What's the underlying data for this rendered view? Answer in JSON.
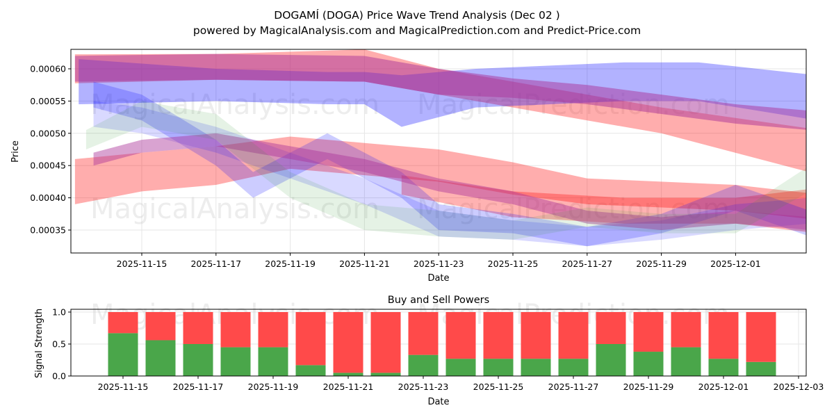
{
  "chart_data": [
    {
      "type": "area",
      "title": "DOGAMÍ (DOGA) Price Wave Trend Analysis (Dec 02 )",
      "subtitle": "powered by MagicalAnalysis.com and MagicalPrediction.com and Predict-Price.com",
      "xlabel": "Date",
      "ylabel": "Price",
      "ylim": [
        0.000315,
        0.00063
      ],
      "grid": true,
      "x_ticks": [
        "2025-11-15",
        "2025-11-17",
        "2025-11-19",
        "2025-11-21",
        "2025-11-23",
        "2025-11-25",
        "2025-11-27",
        "2025-11-29",
        "2025-12-01"
      ],
      "y_ticks": [
        "0.00035",
        "0.00040",
        "0.00045",
        "0.00050",
        "0.00055",
        "0.00060"
      ],
      "y_tick_values": [
        0.00035,
        0.0004,
        0.00045,
        0.0005,
        0.00055,
        0.0006
      ],
      "watermarks": [
        "MagicalAnalysis.com",
        "MagicalPrediction.com"
      ],
      "bands": [
        {
          "name": "red-top",
          "color": "#ff0000",
          "opacity": 0.32,
          "days": [
            -1.8,
            2,
            6,
            8,
            10,
            14,
            18.3
          ],
          "center": [
            0.0006,
            0.000603,
            0.000605,
            0.00058,
            0.00056,
            0.00052,
            0.00047
          ],
          "width": [
            4.5e-05,
            4e-05,
            5e-05,
            4e-05,
            4e-05,
            4e-05,
            7e-05
          ]
        },
        {
          "name": "red-lower",
          "color": "#ff0000",
          "opacity": 0.32,
          "days": [
            -1.8,
            0,
            2,
            4,
            6,
            8,
            10,
            12,
            14,
            16,
            18.3
          ],
          "center": [
            0.000425,
            0.00044,
            0.00045,
            0.00047,
            0.00046,
            0.00045,
            0.00043,
            0.00041,
            0.000405,
            0.0004,
            0.000385
          ],
          "width": [
            7e-05,
            6e-05,
            6e-05,
            5e-05,
            5e-05,
            5e-05,
            5e-05,
            4e-05,
            4e-05,
            4e-05,
            4e-05
          ]
        },
        {
          "name": "red-low-flat",
          "color": "#ff0000",
          "opacity": 0.3,
          "days": [
            7,
            10,
            13,
            16,
            18.2
          ],
          "center": [
            0.00042,
            0.00039,
            0.00038,
            0.00038,
            0.00038
          ],
          "width": [
            3e-05,
            4e-05,
            4e-05,
            4e-05,
            7e-05
          ]
        },
        {
          "name": "blue-top",
          "color": "#0000ff",
          "opacity": 0.3,
          "days": [
            -1.7,
            2,
            5,
            6,
            7,
            9,
            11,
            13,
            15,
            18.2
          ],
          "center": [
            0.00058,
            0.000575,
            0.00057,
            0.00057,
            0.00055,
            0.00057,
            0.000575,
            0.00058,
            0.00058,
            0.000555
          ],
          "width": [
            7e-05,
            5e-05,
            5e-05,
            5e-05,
            8e-05,
            6e-05,
            6e-05,
            6e-05,
            6e-05,
            7e-05
          ]
        },
        {
          "name": "blue-desc-1",
          "color": "#0000ff",
          "opacity": 0.15,
          "days": [
            -1.3,
            0,
            2,
            4,
            6,
            8,
            10,
            12,
            14,
            16,
            18
          ],
          "center": [
            0.00053,
            0.00052,
            0.00049,
            0.00045,
            0.00041,
            0.00036,
            0.00035,
            0.00034,
            0.00035,
            0.00037,
            0.00038
          ],
          "width": [
            4e-05,
            4e-05,
            4e-05,
            4e-05,
            4e-05,
            4e-05,
            3e-05,
            3e-05,
            3e-05,
            4e-05,
            4e-05
          ]
        },
        {
          "name": "blue-desc-2",
          "color": "#0000ff",
          "opacity": 0.2,
          "days": [
            -1.3,
            0,
            2,
            3,
            5,
            7,
            8,
            10,
            12,
            14,
            16,
            18
          ],
          "center": [
            0.00056,
            0.00054,
            0.00047,
            0.00042,
            0.00048,
            0.00042,
            0.00037,
            0.00036,
            0.00034,
            0.00036,
            0.0004,
            0.00036
          ],
          "width": [
            4e-05,
            4e-05,
            4e-05,
            4e-05,
            4e-05,
            4e-05,
            4e-05,
            3e-05,
            3e-05,
            3e-05,
            4e-05,
            4e-05
          ]
        },
        {
          "name": "purple-top",
          "color": "#aa3399",
          "opacity": 0.5,
          "days": [
            -1.8,
            2,
            6,
            8,
            10,
            12,
            14,
            16,
            18
          ],
          "center": [
            0.0006,
            0.000603,
            0.0006,
            0.00058,
            0.00057,
            0.00056,
            0.000545,
            0.00053,
            0.00052
          ],
          "width": [
            4e-05,
            4e-05,
            4e-05,
            4e-05,
            3e-05,
            3e-05,
            3e-05,
            3e-05,
            3e-05
          ]
        },
        {
          "name": "purple-lower",
          "color": "#aa3399",
          "opacity": 0.45,
          "days": [
            -1.3,
            0,
            2,
            4,
            6,
            8,
            10,
            12,
            14,
            16,
            18
          ],
          "center": [
            0.00046,
            0.00048,
            0.00049,
            0.00047,
            0.00045,
            0.00042,
            0.0004,
            0.00037,
            0.00036,
            0.00037,
            0.00036
          ],
          "width": [
            2e-05,
            2e-05,
            2e-05,
            2e-05,
            2e-05,
            2e-05,
            2e-05,
            2e-05,
            2e-05,
            2e-05,
            2e-05
          ]
        },
        {
          "name": "green",
          "color": "#339933",
          "opacity": 0.13,
          "days": [
            -1.5,
            0,
            2,
            4,
            6,
            8,
            10,
            12,
            14,
            16,
            18
          ],
          "center": [
            0.00049,
            0.00053,
            0.00051,
            0.00042,
            0.00037,
            0.00036,
            0.00035,
            0.00037,
            0.00036,
            0.00036,
            0.00043
          ],
          "width": [
            3e-05,
            4e-05,
            4e-05,
            4e-05,
            4e-05,
            4e-05,
            3e-05,
            3e-05,
            3e-05,
            3e-05,
            4e-05
          ]
        }
      ]
    },
    {
      "type": "bar",
      "title": "Buy and Sell Powers",
      "xlabel": "Date",
      "ylabel": "Signal Strength",
      "ylim": [
        0,
        1.05
      ],
      "grid": true,
      "x_ticks": [
        "2025-11-15",
        "2025-11-17",
        "2025-11-19",
        "2025-11-21",
        "2025-11-23",
        "2025-11-25",
        "2025-11-27",
        "2025-11-29",
        "2025-12-01",
        "2025-12-03"
      ],
      "y_ticks": [
        "0.0",
        "0.5",
        "1.0"
      ],
      "y_tick_values": [
        0,
        0.5,
        1.0
      ],
      "categories": [
        "2025-11-15",
        "2025-11-16",
        "2025-11-17",
        "2025-11-18",
        "2025-11-19",
        "2025-11-20",
        "2025-11-21",
        "2025-11-22",
        "2025-11-23",
        "2025-11-24",
        "2025-11-25",
        "2025-11-26",
        "2025-11-27",
        "2025-11-28",
        "2025-11-29",
        "2025-11-30",
        "2025-12-01",
        "2025-12-02"
      ],
      "series": [
        {
          "name": "Buy",
          "color": "#4aa64a",
          "values": [
            0.67,
            0.56,
            0.5,
            0.45,
            0.45,
            0.17,
            0.05,
            0.05,
            0.33,
            0.27,
            0.27,
            0.27,
            0.27,
            0.5,
            0.38,
            0.45,
            0.27,
            0.22
          ]
        },
        {
          "name": "Sell",
          "color": "#ff4a4a",
          "values": [
            0.33,
            0.44,
            0.5,
            0.55,
            0.55,
            0.83,
            0.95,
            0.95,
            0.67,
            0.73,
            0.73,
            0.73,
            0.73,
            0.5,
            0.62,
            0.55,
            0.73,
            0.78
          ]
        }
      ]
    }
  ]
}
